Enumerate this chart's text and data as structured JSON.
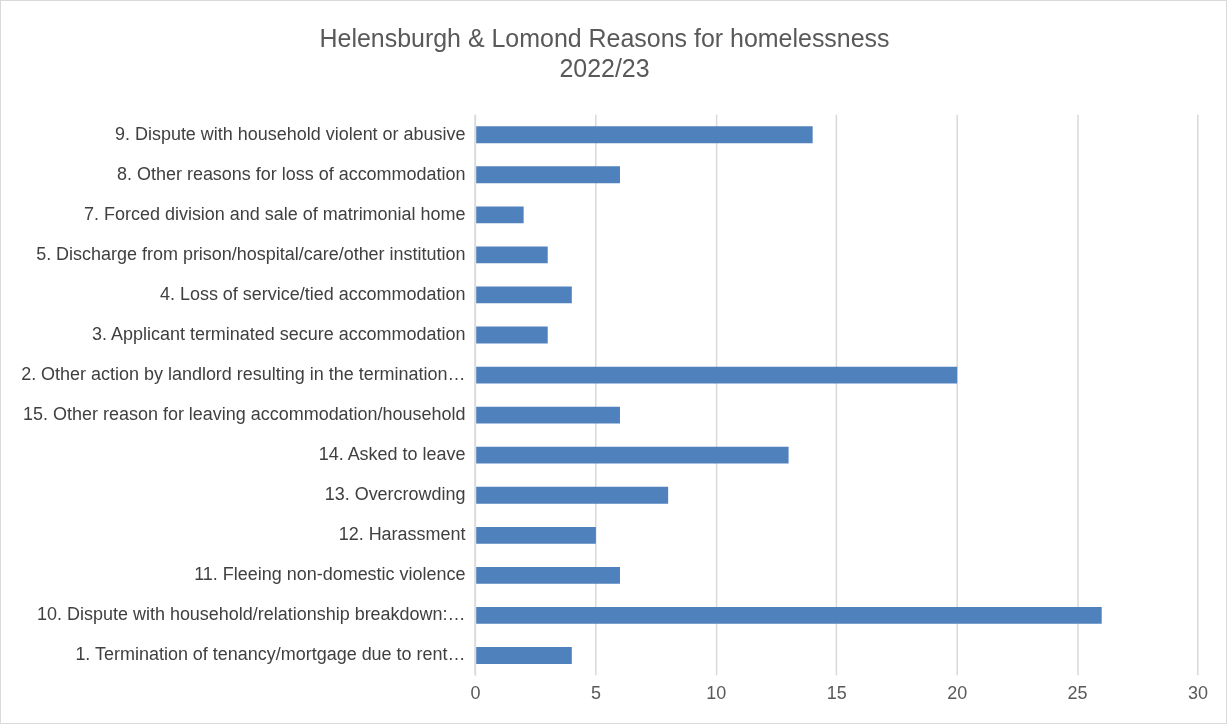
{
  "chart_data": {
    "type": "bar",
    "orientation": "horizontal",
    "title": "Helensburgh & Lomond Reasons for homelessness\n2022/23",
    "categories": [
      "9. Dispute with household violent or abusive",
      "8. Other reasons for loss of accommodation",
      "7. Forced division and sale of matrimonial home",
      "5. Discharge from prison/hospital/care/other institution",
      "4. Loss of service/tied accommodation",
      "3. Applicant terminated secure accommodation",
      "2. Other action by landlord resulting in the termination…",
      "15. Other reason for leaving accommodation/household",
      "14. Asked to leave",
      "13. Overcrowding",
      "12. Harassment",
      "11. Fleeing non-domestic violence",
      "10. Dispute with household/relationship breakdown:…",
      "1. Termination of tenancy/mortgage due to rent…"
    ],
    "values": [
      14,
      6,
      2,
      3,
      4,
      3,
      20,
      6,
      13,
      8,
      5,
      6,
      26,
      4
    ],
    "color": "#4f81bd",
    "xlim": [
      0,
      30
    ],
    "xticks": [
      0,
      5,
      10,
      15,
      20,
      25,
      30
    ],
    "grid": "x",
    "legend": false
  }
}
